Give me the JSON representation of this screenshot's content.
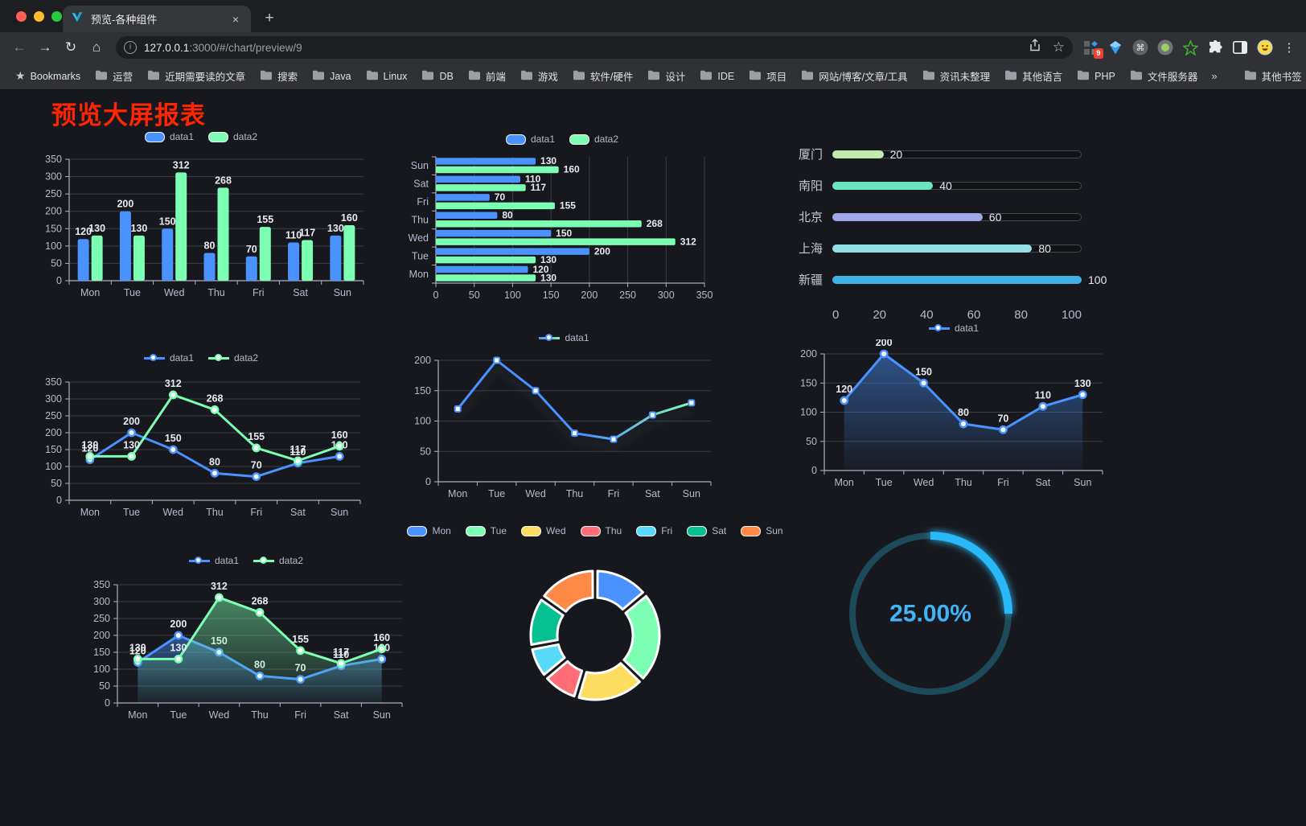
{
  "browser": {
    "tab_title": "预览-各种组件",
    "close_glyph": "×",
    "newtab_glyph": "+",
    "back_glyph": "←",
    "forward_glyph": "→",
    "reload_glyph": "↻",
    "home_glyph": "⌂",
    "info_glyph": "i",
    "url_host": "127.0.0.1",
    "url_rest": ":3000/#/chart/preview/9",
    "star_glyph": "☆",
    "bookmarks_star": "★",
    "bookmarks_label": "Bookmarks",
    "bookmarks": [
      "运营",
      "近期需要读的文章",
      "搜索",
      "Java",
      "Linux",
      "DB",
      "前端",
      "游戏",
      "软件/硬件",
      "设计",
      "IDE",
      "项目",
      "网站/博客/文章/工具",
      "资讯未整理",
      "其他语言",
      "PHP",
      "文件服务器"
    ],
    "overflow_glyph": "»",
    "other_bookmarks": "其他书签",
    "extension_badge": "9",
    "kebab_glyph": "⋮"
  },
  "page": {
    "title": "预览大屏报表"
  },
  "chart_data": [
    {
      "id": "bar-vertical",
      "type": "bar",
      "categories": [
        "Mon",
        "Tue",
        "Wed",
        "Thu",
        "Fri",
        "Sat",
        "Sun"
      ],
      "series": [
        {
          "name": "data1",
          "color": "#4992ff",
          "values": [
            120,
            200,
            150,
            80,
            70,
            110,
            130
          ]
        },
        {
          "name": "data2",
          "color": "#7cffb2",
          "values": [
            130,
            130,
            312,
            268,
            155,
            117,
            160
          ]
        }
      ],
      "ylim": [
        0,
        350
      ],
      "yticks": [
        0,
        50,
        100,
        150,
        200,
        250,
        300,
        350
      ],
      "grid": true,
      "legend_position": "top"
    },
    {
      "id": "bar-horizontal",
      "type": "hbar",
      "categories": [
        "Mon",
        "Tue",
        "Wed",
        "Thu",
        "Fri",
        "Sat",
        "Sun"
      ],
      "series": [
        {
          "name": "data1",
          "color": "#4992ff",
          "values": [
            120,
            200,
            150,
            80,
            70,
            110,
            130
          ]
        },
        {
          "name": "data2",
          "color": "#7cffb2",
          "values": [
            130,
            130,
            312,
            268,
            155,
            117,
            160
          ]
        }
      ],
      "xlim": [
        0,
        350
      ],
      "xticks": [
        0,
        50,
        100,
        150,
        200,
        250,
        300,
        350
      ],
      "grid": true,
      "legend_position": "top"
    },
    {
      "id": "progress-list",
      "type": "progress",
      "items": [
        {
          "label": "厦门",
          "value": 20,
          "color": "#c4ebad"
        },
        {
          "label": "南阳",
          "value": 40,
          "color": "#6be6c1"
        },
        {
          "label": "北京",
          "value": 60,
          "color": "#a0a7e6"
        },
        {
          "label": "上海",
          "value": 80,
          "color": "#96dee8"
        },
        {
          "label": "新疆",
          "value": 100,
          "color": "#3fb1e3"
        }
      ],
      "max": 100,
      "xticks": [
        0,
        20,
        40,
        60,
        80,
        100
      ]
    },
    {
      "id": "line-two-series",
      "type": "line",
      "categories": [
        "Mon",
        "Tue",
        "Wed",
        "Thu",
        "Fri",
        "Sat",
        "Sun"
      ],
      "series": [
        {
          "name": "data1",
          "color": "#4992ff",
          "values": [
            120,
            200,
            150,
            80,
            70,
            110,
            130
          ]
        },
        {
          "name": "data2",
          "color": "#7cffb2",
          "values": [
            130,
            130,
            312,
            268,
            155,
            117,
            160
          ]
        }
      ],
      "ylim": [
        0,
        350
      ],
      "yticks": [
        0,
        50,
        100,
        150,
        200,
        250,
        300,
        350
      ],
      "labels": true,
      "grid": true
    },
    {
      "id": "line-gradient",
      "type": "line",
      "categories": [
        "Mon",
        "Tue",
        "Wed",
        "Thu",
        "Fri",
        "Sat",
        "Sun"
      ],
      "series": [
        {
          "name": "data1",
          "color": "#4992ff",
          "gradient": [
            "#4992ff",
            "#7cffb2"
          ],
          "values": [
            120,
            200,
            150,
            80,
            70,
            110,
            130
          ],
          "shadow": true,
          "marker": "rect"
        }
      ],
      "ylim": [
        0,
        200
      ],
      "yticks": [
        0,
        50,
        100,
        150,
        200
      ],
      "labels": false,
      "grid": true
    },
    {
      "id": "line-area",
      "type": "line",
      "categories": [
        "Mon",
        "Tue",
        "Wed",
        "Thu",
        "Fri",
        "Sat",
        "Sun"
      ],
      "series": [
        {
          "name": "data1",
          "color": "#4992ff",
          "area": true,
          "values": [
            120,
            200,
            150,
            80,
            70,
            110,
            130
          ]
        }
      ],
      "ylim": [
        0,
        200
      ],
      "yticks": [
        0,
        50,
        100,
        150,
        200
      ],
      "labels": true,
      "grid": true
    },
    {
      "id": "line-area-two",
      "type": "line",
      "categories": [
        "Mon",
        "Tue",
        "Wed",
        "Thu",
        "Fri",
        "Sat",
        "Sun"
      ],
      "series": [
        {
          "name": "data1",
          "color": "#4992ff",
          "area": true,
          "values": [
            120,
            200,
            150,
            80,
            70,
            110,
            130
          ]
        },
        {
          "name": "data2",
          "color": "#7cffb2",
          "area": true,
          "values": [
            130,
            130,
            312,
            268,
            155,
            117,
            160
          ]
        }
      ],
      "ylim": [
        0,
        350
      ],
      "yticks": [
        0,
        50,
        100,
        150,
        200,
        250,
        300,
        350
      ],
      "labels": true,
      "grid": true
    },
    {
      "id": "donut",
      "type": "pie",
      "items": [
        {
          "label": "Mon",
          "value": 120,
          "color": "#4992ff"
        },
        {
          "label": "Tue",
          "value": 200,
          "color": "#7cffb2"
        },
        {
          "label": "Wed",
          "value": 150,
          "color": "#fddd60"
        },
        {
          "label": "Thu",
          "value": 80,
          "color": "#ff6e76"
        },
        {
          "label": "Fri",
          "value": 70,
          "color": "#58d9f9"
        },
        {
          "label": "Sat",
          "value": 110,
          "color": "#05c091"
        },
        {
          "label": "Sun",
          "value": 130,
          "color": "#ff8a45"
        }
      ],
      "inner_radius": 47,
      "outer_radius": 80,
      "legend_position": "top"
    },
    {
      "id": "gauge",
      "type": "gauge",
      "value": 25,
      "label": "25.00%",
      "color": "#29b9f8",
      "track_color": "#1d4a5a",
      "text_color": "#41b4f8"
    }
  ]
}
